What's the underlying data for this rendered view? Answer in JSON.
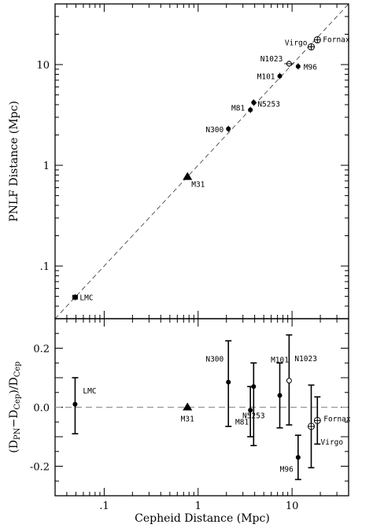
{
  "chart_data": [
    {
      "type": "scatter",
      "panel": "top",
      "xlabel": "Cepheid Distance (Mpc)",
      "ylabel": "PNLF Distance (Mpc)",
      "xscale": "log",
      "yscale": "log",
      "xlim": [
        0.03,
        40
      ],
      "ylim": [
        0.03,
        40
      ],
      "x_ticklabels": [
        ".1",
        "1",
        "10"
      ],
      "y_ticklabels": [
        ".1",
        "1",
        "10"
      ],
      "reference_line": "y = x (dashed)",
      "points": [
        {
          "label": "LMC",
          "x": 0.049,
          "y": 0.049,
          "marker": "square"
        },
        {
          "label": "M31",
          "x": 0.77,
          "y": 0.77,
          "marker": "triangle"
        },
        {
          "label": "N300",
          "x": 2.1,
          "y": 2.3,
          "marker": "circle"
        },
        {
          "label": "M81",
          "x": 3.6,
          "y": 3.55,
          "marker": "circle"
        },
        {
          "label": "N5253",
          "x": 3.9,
          "y": 4.2,
          "marker": "circle"
        },
        {
          "label": "M101",
          "x": 7.4,
          "y": 7.7,
          "marker": "circle"
        },
        {
          "label": "N1023",
          "x": 9.3,
          "y": 10.2,
          "marker": "open-circle"
        },
        {
          "label": "M96",
          "x": 11.6,
          "y": 9.6,
          "marker": "circle"
        },
        {
          "label": "Virgo",
          "x": 16.0,
          "y": 15.0,
          "marker": "crossed-circle"
        },
        {
          "label": "Fornax",
          "x": 18.6,
          "y": 17.6,
          "marker": "crossed-circle"
        }
      ]
    },
    {
      "type": "scatter",
      "panel": "bottom",
      "xlabel": "Cepheid Distance (Mpc)",
      "ylabel": "(D_PN−D_Cep)/D_Cep",
      "xscale": "log",
      "xlim": [
        0.03,
        40
      ],
      "ylim": [
        -0.3,
        0.3
      ],
      "y_ticklabels": [
        "-0.2",
        "0.0",
        "0.2"
      ],
      "reference_line": "y = 0 (dashed)",
      "points": [
        {
          "label": "LMC",
          "x": 0.049,
          "y": 0.01,
          "err_lo": 0.1,
          "err_hi": 0.09,
          "marker": "circle"
        },
        {
          "label": "M31",
          "x": 0.77,
          "y": 0.0,
          "err_lo": 0.0,
          "err_hi": 0.0,
          "marker": "triangle"
        },
        {
          "label": "N300",
          "x": 2.1,
          "y": 0.085,
          "err_lo": 0.15,
          "err_hi": 0.14,
          "marker": "circle"
        },
        {
          "label": "M81",
          "x": 3.6,
          "y": -0.01,
          "err_lo": 0.09,
          "err_hi": 0.08,
          "marker": "circle"
        },
        {
          "label": "N5253",
          "x": 3.9,
          "y": 0.07,
          "err_lo": 0.2,
          "err_hi": 0.08,
          "marker": "circle"
        },
        {
          "label": "M101",
          "x": 7.4,
          "y": 0.04,
          "err_lo": 0.11,
          "err_hi": 0.11,
          "marker": "circle"
        },
        {
          "label": "N1023",
          "x": 9.3,
          "y": 0.09,
          "err_lo": 0.15,
          "err_hi": 0.155,
          "marker": "open-circle"
        },
        {
          "label": "M96",
          "x": 11.6,
          "y": -0.17,
          "err_lo": 0.075,
          "err_hi": 0.075,
          "marker": "circle"
        },
        {
          "label": "Virgo",
          "x": 16.0,
          "y": -0.065,
          "err_lo": 0.14,
          "err_hi": 0.14,
          "marker": "crossed-circle"
        },
        {
          "label": "Fornax",
          "x": 18.6,
          "y": -0.045,
          "err_lo": 0.08,
          "err_hi": 0.08,
          "marker": "crossed-circle"
        }
      ]
    }
  ]
}
